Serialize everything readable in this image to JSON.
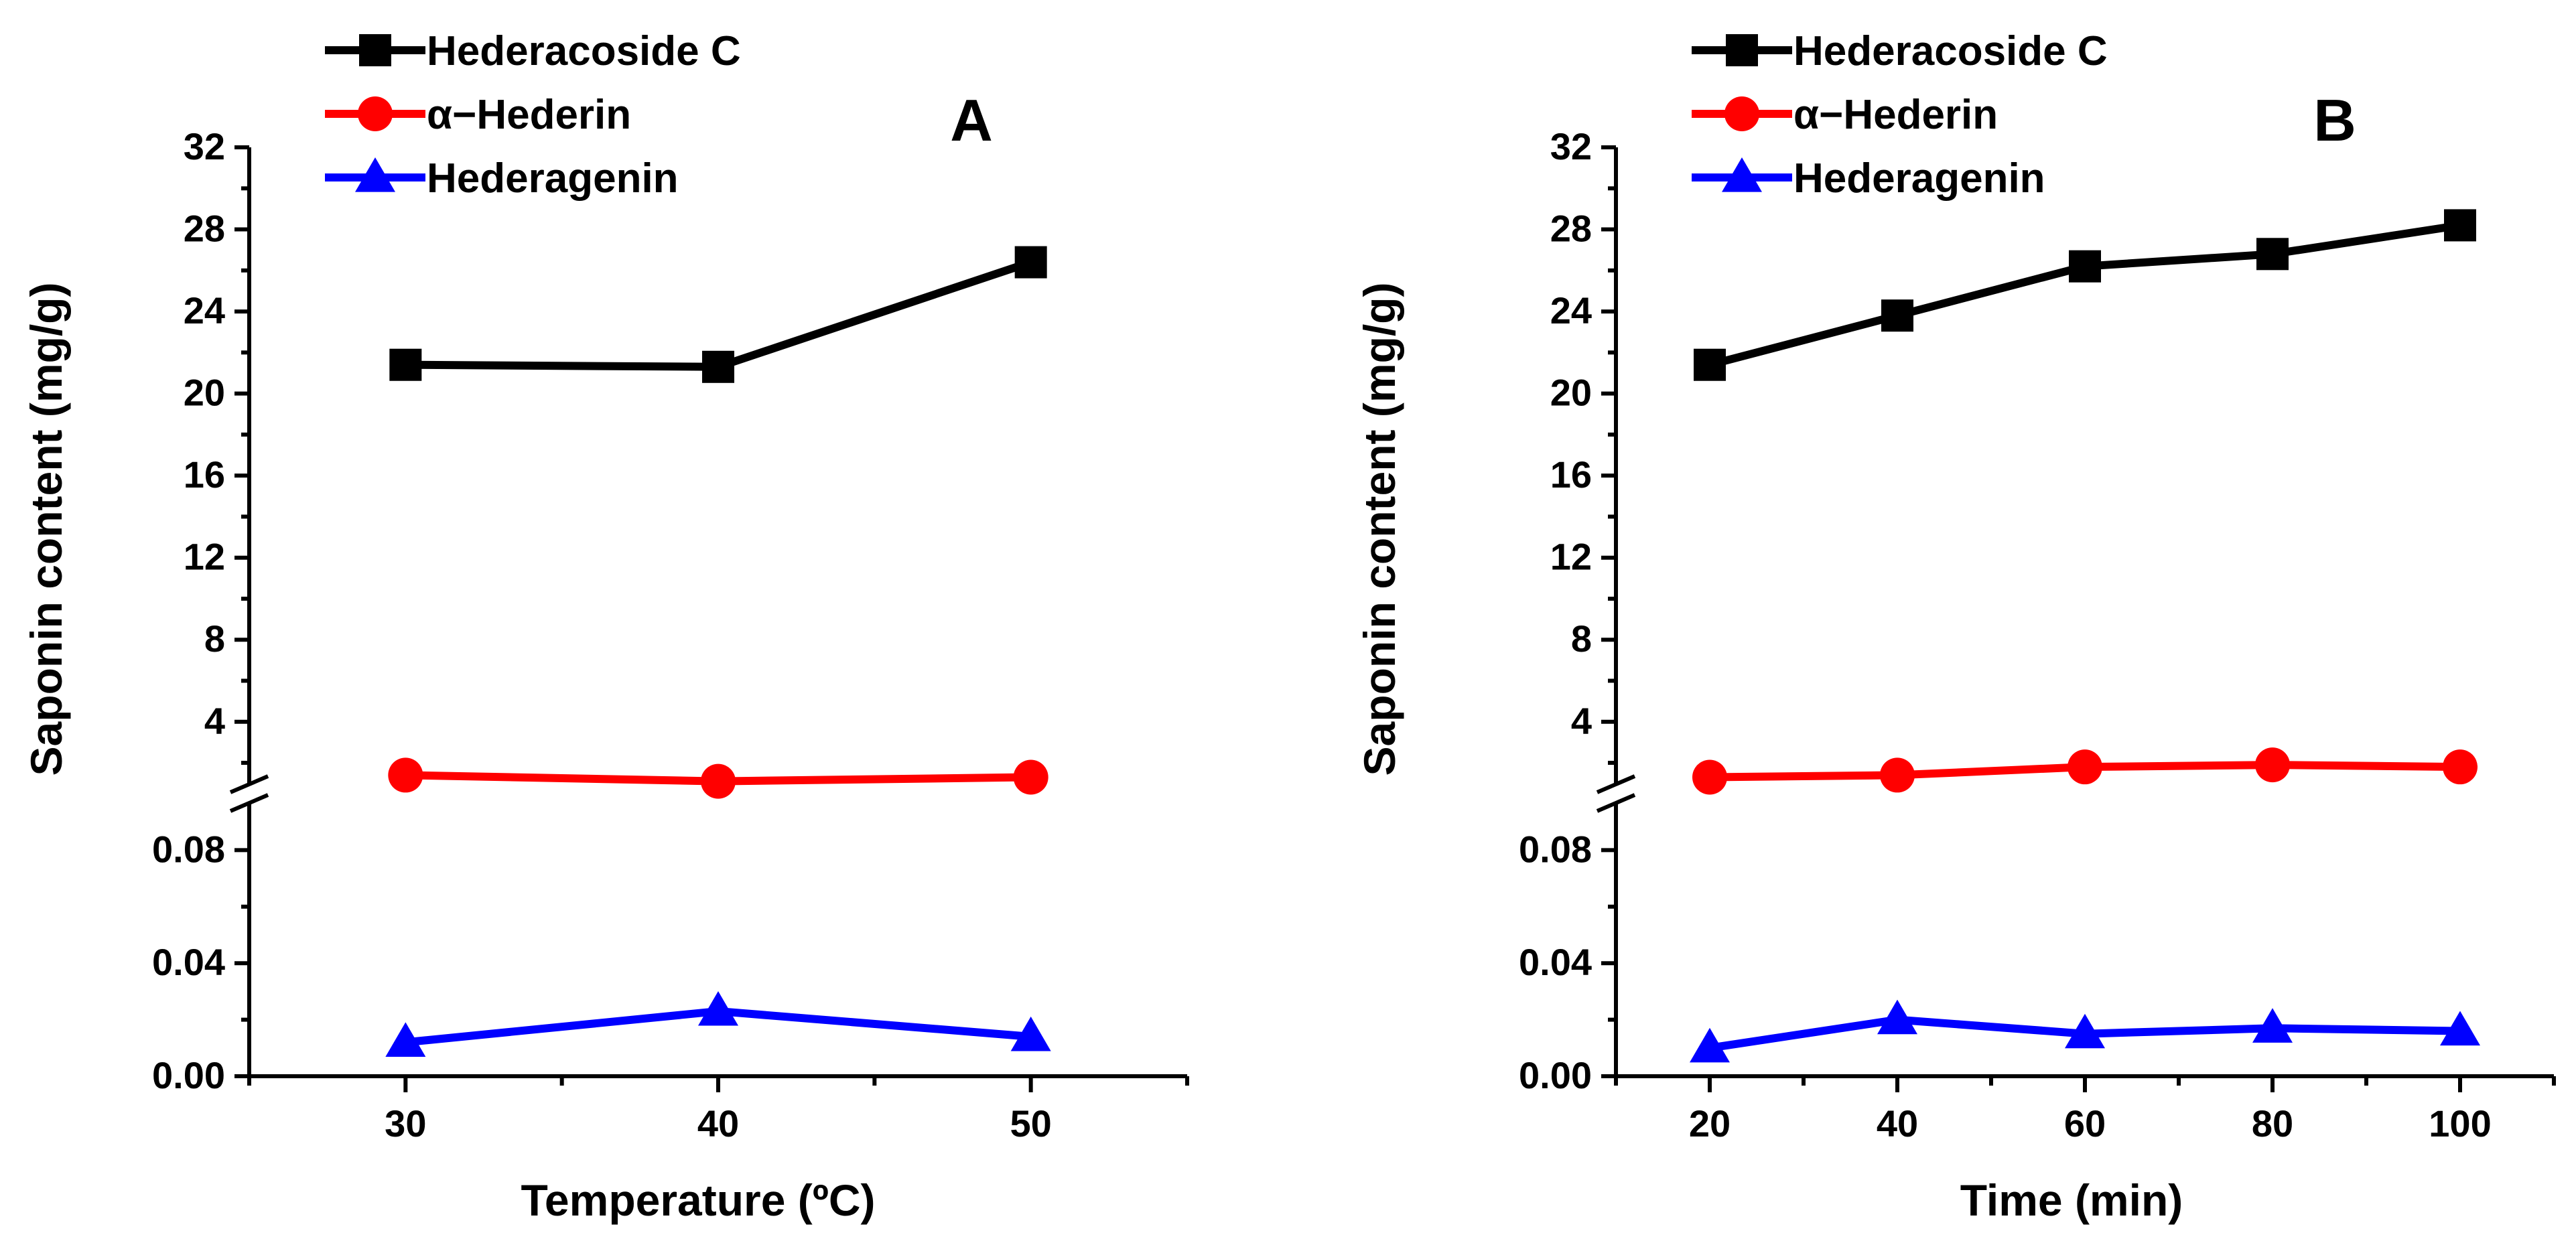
{
  "chart_data": [
    {
      "type": "line",
      "panel_label": "A",
      "xlabel": "Temperature (ºC)",
      "ylabel": "Saponin content (mg/g)",
      "x": [
        30,
        40,
        50
      ],
      "xticks": [
        "30",
        "40",
        "50"
      ],
      "xlim": [
        25,
        55
      ],
      "y_axis_break": {
        "lower": {
          "range": [
            0,
            0.1
          ],
          "ticks": [
            "0.00",
            "0.04",
            "0.08"
          ]
        },
        "upper": {
          "range": [
            0,
            32
          ],
          "ticks": [
            "4",
            "8",
            "12",
            "16",
            "20",
            "24",
            "28",
            "32"
          ]
        }
      },
      "series": [
        {
          "name": "Hederacoside C",
          "color": "#000000",
          "marker": "square",
          "axis": "upper",
          "values": [
            21.4,
            21.3,
            26.4
          ]
        },
        {
          "name": "α−Hederin",
          "color": "#ff0000",
          "marker": "circle",
          "axis": "upper",
          "values": [
            1.4,
            1.1,
            1.3
          ]
        },
        {
          "name": "Hederagenin",
          "color": "#0000ff",
          "marker": "triangle",
          "axis": "lower",
          "values": [
            0.012,
            0.023,
            0.014
          ]
        }
      ],
      "legend_position": "top-left"
    },
    {
      "type": "line",
      "panel_label": "B",
      "xlabel": "Time (min)",
      "ylabel": "Saponin content (mg/g)",
      "x": [
        20,
        40,
        60,
        80,
        100
      ],
      "xticks": [
        "20",
        "40",
        "60",
        "80",
        "100"
      ],
      "xlim": [
        10,
        110
      ],
      "y_axis_break": {
        "lower": {
          "range": [
            0,
            0.1
          ],
          "ticks": [
            "0.00",
            "0.04",
            "0.08"
          ]
        },
        "upper": {
          "range": [
            0,
            32
          ],
          "ticks": [
            "4",
            "8",
            "12",
            "16",
            "20",
            "24",
            "28",
            "32"
          ]
        }
      },
      "series": [
        {
          "name": "Hederacoside C",
          "color": "#000000",
          "marker": "square",
          "axis": "upper",
          "values": [
            21.4,
            23.8,
            26.2,
            26.8,
            28.2
          ]
        },
        {
          "name": "α−Hederin",
          "color": "#ff0000",
          "marker": "circle",
          "axis": "upper",
          "values": [
            1.3,
            1.4,
            1.8,
            1.9,
            1.8
          ]
        },
        {
          "name": "Hederagenin",
          "color": "#0000ff",
          "marker": "triangle",
          "axis": "lower",
          "values": [
            0.01,
            0.02,
            0.015,
            0.017,
            0.016
          ]
        }
      ],
      "legend_position": "top-left"
    }
  ]
}
